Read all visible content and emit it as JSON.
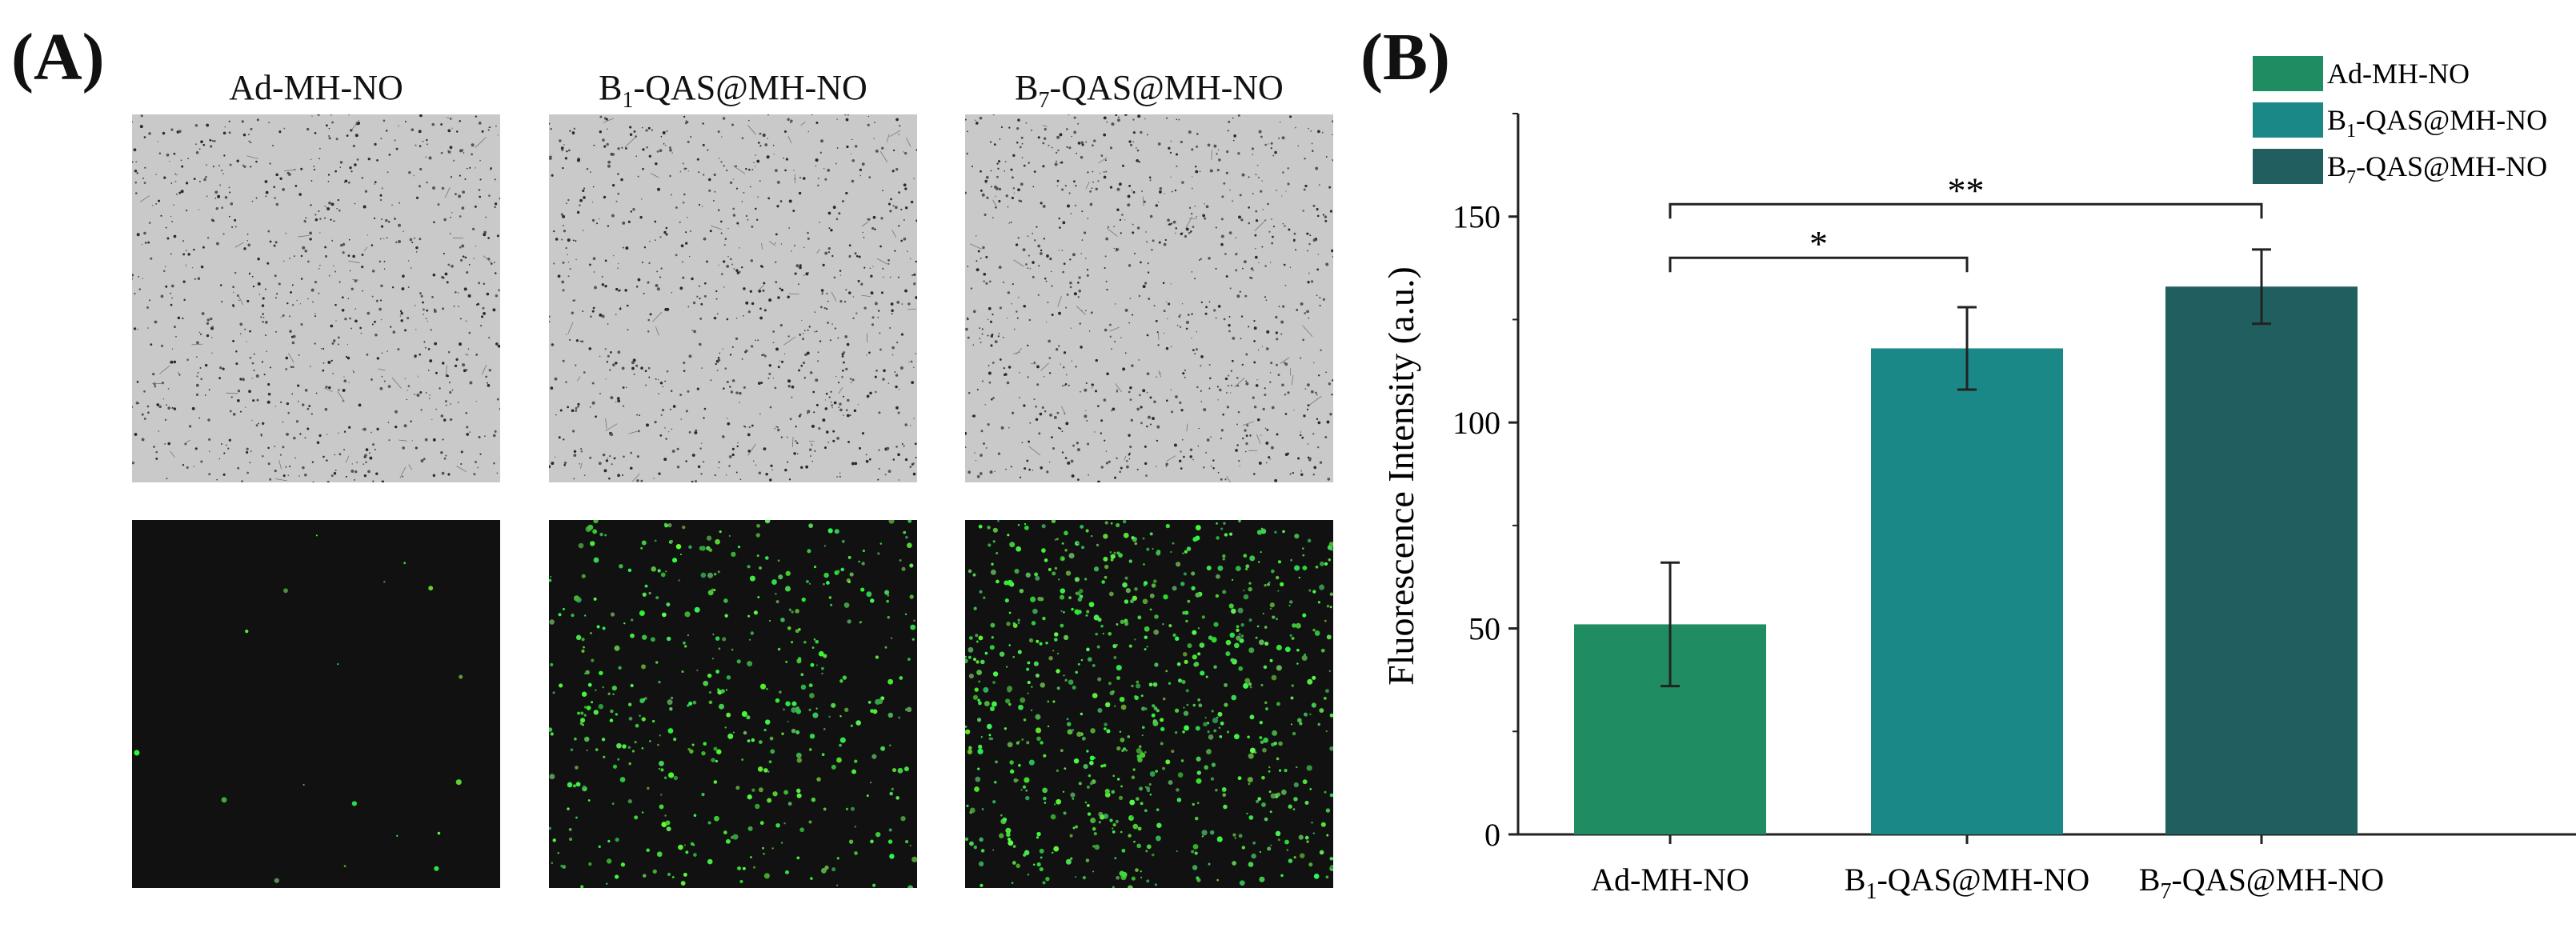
{
  "panel_a": {
    "label": "(A)",
    "columns": [
      {
        "title_main": "Ad-MH-NO",
        "title_sub": "",
        "title_rest": "",
        "green_density": 0.02
      },
      {
        "title_main": "B",
        "title_sub": "1",
        "title_rest": "-QAS@MH-NO",
        "green_density": 0.55
      },
      {
        "title_main": "B",
        "title_sub": "7",
        "title_rest": "-QAS@MH-NO",
        "green_density": 0.9
      }
    ]
  },
  "panel_b": {
    "label": "(B)"
  },
  "chart_data": {
    "type": "bar",
    "ylabel": "Fluorescence Intensity (a.u.)",
    "ylim": [
      0,
      175
    ],
    "yticks": [
      0,
      50,
      100,
      150
    ],
    "categories": [
      {
        "main": "Ad-MH-NO",
        "sub": "",
        "rest": ""
      },
      {
        "main": "B",
        "sub": "1",
        "rest": "-QAS@MH-NO"
      },
      {
        "main": "B",
        "sub": "7",
        "rest": "-QAS@MH-NO"
      }
    ],
    "values": [
      51,
      118,
      133
    ],
    "errors": [
      15,
      10,
      9
    ],
    "colors": [
      "#1f8c61",
      "#1a8886",
      "#215e5f"
    ],
    "legend": [
      {
        "main": "Ad-MH-NO",
        "sub": "",
        "rest": ""
      },
      {
        "main": "B",
        "sub": "1",
        "rest": "-QAS@MH-NO"
      },
      {
        "main": "B",
        "sub": "7",
        "rest": "-QAS@MH-NO"
      }
    ],
    "legend_position": "top-right",
    "significance": [
      {
        "from": 0,
        "to": 1,
        "y": 140,
        "label": "*"
      },
      {
        "from": 0,
        "to": 2,
        "y": 153,
        "label": "**"
      }
    ]
  }
}
